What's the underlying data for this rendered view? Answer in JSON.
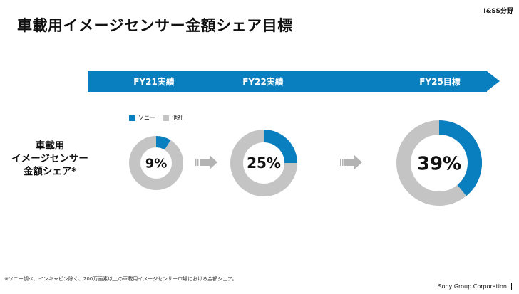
{
  "header": {
    "title": "車載用イメージセンサー金額シェア目標",
    "division": "I&SS分野"
  },
  "banner": {
    "periods": [
      "FY21実績",
      "FY22実績",
      "FY25目標"
    ]
  },
  "legend": {
    "items": [
      {
        "label": "ソニー",
        "color": "#0a7fbf"
      },
      {
        "label": "他社",
        "color": "#c4c4c4"
      }
    ]
  },
  "row_label": {
    "lines": [
      "車載用",
      "イメージセンサー",
      "金額シェア*"
    ]
  },
  "chart_data": {
    "type": "pie",
    "donut": true,
    "categories": [
      "FY21実績",
      "FY22実績",
      "FY25目標"
    ],
    "series": [
      {
        "name": "ソニー",
        "values": [
          9,
          25,
          39
        ]
      },
      {
        "name": "他社",
        "values": [
          91,
          75,
          61
        ]
      }
    ],
    "data_labels": [
      "9%",
      "25%",
      "39%"
    ],
    "colors": {
      "sony": "#0a7fbf",
      "others": "#c4c4c4",
      "arrow": "#b3b3b3"
    }
  },
  "footer": {
    "note": "※ソニー調べ、インキャビン除く、200万画素以上の車載用イメージセンサー市場における金額シェア。",
    "company": "Sony Group Corporation"
  }
}
